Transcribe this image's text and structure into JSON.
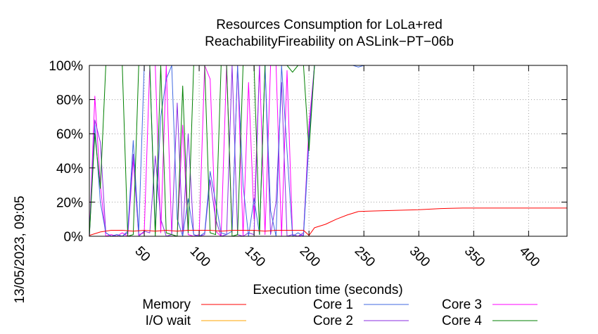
{
  "side_label": "13/05/2023, 09:05",
  "chart_data": {
    "type": "line",
    "title": "Resources Consumption for LoLa+red",
    "subtitle": "ReachabilityFireability on ASLink−PT−06b",
    "xlabel": "Execution time (seconds)",
    "ylabel": "",
    "xlim": [
      0,
      435
    ],
    "ylim": [
      0,
      100
    ],
    "x_ticks": [
      50,
      100,
      150,
      200,
      250,
      300,
      350,
      400
    ],
    "x_tick_labels": [
      "50",
      "100",
      "150",
      "200",
      "250",
      "300",
      "350",
      "400"
    ],
    "y_ticks": [
      0,
      20,
      40,
      60,
      80,
      100
    ],
    "y_tick_labels": [
      "0%",
      "20%",
      "40%",
      "60%",
      "80%",
      "100%"
    ],
    "grid": true,
    "legend_position": "bottom",
    "series": [
      {
        "name": "Memory",
        "color": "#ff0000",
        "x": [
          0,
          5,
          10,
          20,
          30,
          40,
          50,
          60,
          70,
          80,
          90,
          100,
          110,
          120,
          130,
          140,
          150,
          160,
          170,
          180,
          190,
          195,
          200,
          205,
          215,
          225,
          235,
          245,
          260,
          280,
          300,
          320,
          340,
          360,
          380,
          400,
          420,
          435
        ],
        "values": [
          0.5,
          1.5,
          2.5,
          3.5,
          3.5,
          3.0,
          3.5,
          3.0,
          3.5,
          3.0,
          3.5,
          3.5,
          3.5,
          3.0,
          3.5,
          3.5,
          3.5,
          3.0,
          3.5,
          3.5,
          3.5,
          3.5,
          0.5,
          5,
          7,
          10,
          12.5,
          14.5,
          14.8,
          15.2,
          15.5,
          16.2,
          16.5,
          16.5,
          16.5,
          16.5,
          16.5,
          16.5
        ]
      },
      {
        "name": "I/O wait",
        "color": "#ffa500",
        "x": [
          0,
          200,
          435
        ],
        "values": [
          0,
          0,
          0
        ]
      },
      {
        "name": "Core 1",
        "color": "#4169e1",
        "x": [
          0,
          5,
          10,
          15,
          20,
          25,
          30,
          35,
          40,
          45,
          50,
          55,
          60,
          65,
          70,
          75,
          80,
          85,
          90,
          95,
          100,
          105,
          110,
          115,
          120,
          125,
          130,
          135,
          140,
          145,
          150,
          155,
          160,
          165,
          170,
          175,
          180,
          185,
          190,
          195,
          200,
          205,
          210,
          215,
          220,
          230,
          240,
          245,
          250,
          260,
          300,
          350,
          400,
          435
        ],
        "values": [
          0,
          65,
          20,
          2,
          0,
          1,
          0,
          3,
          56,
          2,
          100,
          100,
          3,
          70,
          92,
          100,
          10,
          0,
          22,
          1,
          0,
          2,
          38,
          20,
          2,
          1,
          3,
          100,
          30,
          0,
          22,
          1,
          100,
          15,
          0,
          100,
          50,
          0,
          2,
          0,
          55,
          100,
          100,
          100,
          100,
          100,
          100,
          99,
          100,
          100,
          100,
          100,
          100,
          100
        ]
      },
      {
        "name": "Core 2",
        "color": "#8a2be2",
        "x": [
          0,
          5,
          10,
          15,
          20,
          25,
          30,
          35,
          40,
          45,
          50,
          55,
          60,
          65,
          70,
          75,
          80,
          85,
          90,
          95,
          100,
          105,
          110,
          115,
          120,
          125,
          130,
          135,
          140,
          145,
          150,
          155,
          160,
          165,
          170,
          175,
          180,
          185,
          190,
          195,
          200,
          205,
          210,
          220,
          300,
          435
        ],
        "values": [
          0,
          68,
          55,
          2,
          0,
          1,
          0,
          2,
          48,
          0,
          3,
          2,
          47,
          10,
          0,
          1,
          78,
          1,
          60,
          1,
          0,
          1,
          33,
          10,
          0,
          1,
          100,
          1,
          0,
          2,
          1,
          100,
          100,
          1,
          20,
          90,
          0,
          1,
          0,
          2,
          60,
          100,
          100,
          100,
          100,
          100
        ]
      },
      {
        "name": "Core 3",
        "color": "#ff00ff",
        "x": [
          0,
          5,
          10,
          15,
          20,
          25,
          30,
          35,
          40,
          45,
          50,
          55,
          60,
          65,
          70,
          75,
          80,
          85,
          90,
          95,
          100,
          105,
          110,
          115,
          120,
          125,
          130,
          135,
          140,
          145,
          150,
          155,
          160,
          165,
          170,
          175,
          180,
          185,
          190,
          195,
          200,
          205,
          210,
          220,
          300,
          435
        ],
        "values": [
          0,
          82,
          30,
          0,
          1,
          0,
          2,
          0,
          45,
          1,
          2,
          100,
          100,
          2,
          100,
          1,
          0,
          65,
          1,
          0,
          1,
          100,
          92,
          3,
          0,
          100,
          2,
          100,
          0,
          90,
          10,
          100,
          1,
          100,
          100,
          0,
          97,
          1,
          0,
          1,
          65,
          100,
          100,
          100,
          100,
          100
        ]
      },
      {
        "name": "Core 4",
        "color": "#008000",
        "x": [
          0,
          5,
          10,
          15,
          20,
          25,
          30,
          35,
          40,
          45,
          50,
          55,
          60,
          65,
          70,
          75,
          80,
          85,
          90,
          95,
          100,
          105,
          110,
          115,
          120,
          125,
          130,
          135,
          140,
          145,
          150,
          155,
          160,
          165,
          170,
          175,
          180,
          185,
          190,
          195,
          200,
          205,
          210,
          220,
          300,
          435
        ],
        "values": [
          0,
          60,
          28,
          100,
          100,
          100,
          100,
          0,
          1,
          100,
          100,
          100,
          0,
          100,
          2,
          1,
          0,
          88,
          2,
          100,
          100,
          100,
          2,
          1,
          100,
          100,
          0,
          1,
          100,
          100,
          100,
          1,
          100,
          100,
          100,
          100,
          100,
          96,
          100,
          100,
          50,
          100,
          100,
          100,
          100,
          100
        ]
      }
    ]
  }
}
